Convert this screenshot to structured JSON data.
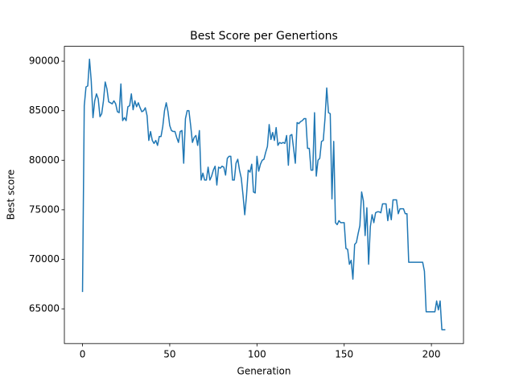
{
  "chart_data": {
    "type": "line",
    "title": "Best Score per Genertions",
    "x_label": "Generation",
    "y_label": "Best score",
    "color": "#1f77b4",
    "x": [
      0,
      1,
      2,
      3,
      4,
      5,
      6,
      7,
      8,
      9,
      10,
      11,
      12,
      13,
      14,
      15,
      16,
      17,
      18,
      19,
      20,
      21,
      22,
      23,
      24,
      25,
      26,
      27,
      28,
      29,
      30,
      31,
      32,
      33,
      34,
      35,
      36,
      37,
      38,
      39,
      40,
      41,
      42,
      43,
      44,
      45,
      46,
      47,
      48,
      49,
      50,
      51,
      52,
      53,
      54,
      55,
      56,
      57,
      58,
      59,
      60,
      61,
      62,
      63,
      64,
      65,
      66,
      67,
      68,
      69,
      70,
      71,
      72,
      73,
      74,
      75,
      76,
      77,
      78,
      79,
      80,
      81,
      82,
      83,
      84,
      85,
      86,
      87,
      88,
      89,
      90,
      91,
      92,
      93,
      94,
      95,
      96,
      97,
      98,
      99,
      100,
      101,
      102,
      103,
      104,
      105,
      106,
      107,
      108,
      109,
      110,
      111,
      112,
      113,
      114,
      115,
      116,
      117,
      118,
      119,
      120,
      121,
      122,
      123,
      124,
      125,
      126,
      127,
      128,
      129,
      130,
      131,
      132,
      133,
      134,
      135,
      136,
      137,
      138,
      139,
      140,
      141,
      142,
      143,
      144,
      145,
      146,
      147,
      148,
      149,
      150,
      151,
      152,
      153,
      154,
      155,
      156,
      157,
      158,
      159,
      160,
      161,
      162,
      163,
      164,
      165,
      166,
      167,
      168,
      169,
      170,
      171,
      172,
      173,
      174,
      175,
      176,
      177,
      178,
      179,
      180,
      181,
      182,
      183,
      184,
      185,
      186,
      187,
      188,
      189,
      190,
      191,
      192,
      193,
      194,
      195,
      196,
      197,
      198,
      199,
      200,
      201,
      202,
      203,
      204,
      205,
      206,
      207,
      208
    ],
    "values": [
      66700,
      85500,
      87400,
      87500,
      90200,
      88000,
      84300,
      86000,
      86700,
      86200,
      84400,
      84700,
      86000,
      87900,
      87200,
      85900,
      85800,
      85700,
      86000,
      85700,
      84900,
      84800,
      87700,
      84000,
      84300,
      84000,
      85400,
      85500,
      86700,
      85100,
      86000,
      85400,
      85800,
      85300,
      84900,
      85000,
      85300,
      84500,
      82000,
      82900,
      82000,
      81700,
      82000,
      81500,
      82400,
      82400,
      83400,
      85000,
      85800,
      84900,
      83500,
      83000,
      82900,
      82900,
      82300,
      81800,
      82900,
      83000,
      79700,
      84200,
      85000,
      85000,
      83500,
      81800,
      82300,
      82500,
      81500,
      83000,
      78000,
      78700,
      78000,
      78000,
      79300,
      78000,
      78400,
      79000,
      79400,
      77500,
      79300,
      79200,
      79400,
      79300,
      78500,
      80200,
      80400,
      80400,
      78000,
      78000,
      79700,
      80100,
      79000,
      78200,
      76500,
      74500,
      76400,
      79000,
      78800,
      79600,
      76800,
      76700,
      80400,
      78900,
      79600,
      80000,
      80100,
      80800,
      81400,
      83600,
      82100,
      82800,
      82000,
      83300,
      81500,
      81800,
      81700,
      81800,
      81700,
      82500,
      79500,
      82500,
      82600,
      81200,
      79700,
      83800,
      83700,
      83900,
      84000,
      84200,
      84200,
      81200,
      81200,
      79000,
      79000,
      84800,
      78400,
      80000,
      80200,
      81900,
      82000,
      84200,
      87300,
      84800,
      84700,
      76100,
      81900,
      73700,
      73500,
      73900,
      73700,
      73700,
      73700,
      71100,
      71000,
      69500,
      69900,
      68000,
      71500,
      71700,
      72600,
      73400,
      76800,
      75900,
      72400,
      75200,
      69500,
      73300,
      74500,
      73700,
      74700,
      74800,
      74800,
      74700,
      75600,
      75600,
      75600,
      73900,
      75100,
      74000,
      76000,
      76000,
      76000,
      74600,
      75100,
      75100,
      75100,
      74600,
      74600,
      69700,
      69700,
      69700,
      69700,
      69700,
      69700,
      69700,
      69700,
      69700,
      68800,
      64700,
      64700,
      64700,
      64700,
      64700,
      64700,
      65800,
      64900,
      65800,
      62900,
      62900,
      62900
    ],
    "xlim": [
      -10.4,
      218.4
    ],
    "xticks": [
      0,
      50,
      100,
      150,
      200
    ],
    "ylim": [
      61500,
      91500
    ],
    "yticks": [
      65000,
      70000,
      75000,
      80000,
      85000,
      90000
    ]
  }
}
